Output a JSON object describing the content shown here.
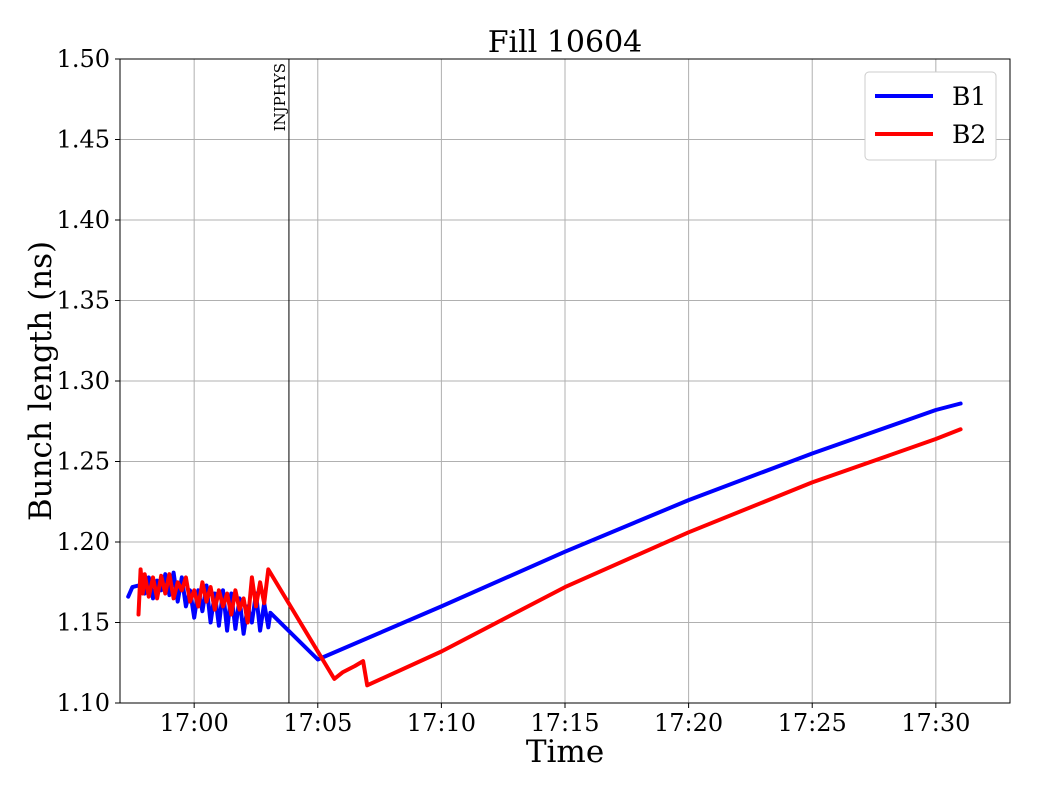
{
  "chart_data": {
    "type": "line",
    "title": "Fill 10604",
    "xlabel": "Time",
    "ylabel": "Bunch length (ns)",
    "xlim": [
      "16:57:00",
      "17:33:00"
    ],
    "ylim": [
      1.1,
      1.5
    ],
    "x_ticks": [
      "17:00",
      "17:05",
      "17:10",
      "17:15",
      "17:20",
      "17:25",
      "17:30"
    ],
    "y_ticks": [
      "1.10",
      "1.15",
      "1.20",
      "1.25",
      "1.30",
      "1.35",
      "1.40",
      "1.45",
      "1.50"
    ],
    "grid": true,
    "legend_position": "top-right",
    "annotations": [
      {
        "text": "INJPHYS",
        "x": "17:03:50",
        "style": "vertical line"
      }
    ],
    "series": [
      {
        "name": "B1",
        "color": "#0000ff",
        "x": [
          "16:57:20",
          "16:57:30",
          "16:57:45",
          "16:58:00",
          "16:58:10",
          "16:58:20",
          "16:58:30",
          "16:58:40",
          "16:58:50",
          "16:59:00",
          "16:59:10",
          "16:59:20",
          "16:59:30",
          "16:59:40",
          "16:59:50",
          "17:00:00",
          "17:00:10",
          "17:00:20",
          "17:00:30",
          "17:00:40",
          "17:00:50",
          "17:01:00",
          "17:01:10",
          "17:01:20",
          "17:01:30",
          "17:01:40",
          "17:01:50",
          "17:02:00",
          "17:02:10",
          "17:02:20",
          "17:02:30",
          "17:02:40",
          "17:02:50",
          "17:03:00",
          "17:03:05",
          "17:05:00",
          "17:10:00",
          "17:15:00",
          "17:20:00",
          "17:25:00",
          "17:30:00",
          "17:31:00"
        ],
        "y": [
          1.166,
          1.172,
          1.173,
          1.168,
          1.178,
          1.165,
          1.176,
          1.17,
          1.18,
          1.167,
          1.181,
          1.163,
          1.178,
          1.16,
          1.17,
          1.153,
          1.17,
          1.157,
          1.173,
          1.15,
          1.168,
          1.148,
          1.17,
          1.145,
          1.168,
          1.146,
          1.165,
          1.143,
          1.16,
          1.15,
          1.168,
          1.145,
          1.162,
          1.147,
          1.156,
          1.127,
          1.16,
          1.194,
          1.226,
          1.255,
          1.282,
          1.286
        ]
      },
      {
        "name": "B2",
        "color": "#ff0000",
        "x": [
          "16:57:45",
          "16:57:50",
          "16:57:55",
          "16:58:00",
          "16:58:10",
          "16:58:20",
          "16:58:30",
          "16:58:40",
          "16:58:50",
          "16:59:00",
          "16:59:10",
          "16:59:20",
          "16:59:30",
          "16:59:40",
          "16:59:50",
          "17:00:00",
          "17:00:10",
          "17:00:20",
          "17:00:30",
          "17:00:40",
          "17:00:50",
          "17:01:00",
          "17:01:10",
          "17:01:20",
          "17:01:30",
          "17:01:40",
          "17:01:50",
          "17:02:00",
          "17:02:10",
          "17:02:20",
          "17:02:30",
          "17:02:40",
          "17:02:50",
          "17:03:00",
          "17:05:40",
          "17:06:00",
          "17:06:30",
          "17:06:50",
          "17:07:00",
          "17:10:00",
          "17:15:00",
          "17:20:00",
          "17:25:00",
          "17:30:00",
          "17:31:00"
        ],
        "y": [
          1.155,
          1.183,
          1.168,
          1.18,
          1.166,
          1.178,
          1.165,
          1.179,
          1.168,
          1.18,
          1.165,
          1.175,
          1.17,
          1.178,
          1.163,
          1.17,
          1.16,
          1.175,
          1.163,
          1.172,
          1.158,
          1.17,
          1.16,
          1.168,
          1.155,
          1.17,
          1.158,
          1.165,
          1.15,
          1.178,
          1.16,
          1.175,
          1.162,
          1.183,
          1.115,
          1.119,
          1.123,
          1.126,
          1.111,
          1.132,
          1.172,
          1.206,
          1.237,
          1.264,
          1.27
        ]
      }
    ]
  }
}
